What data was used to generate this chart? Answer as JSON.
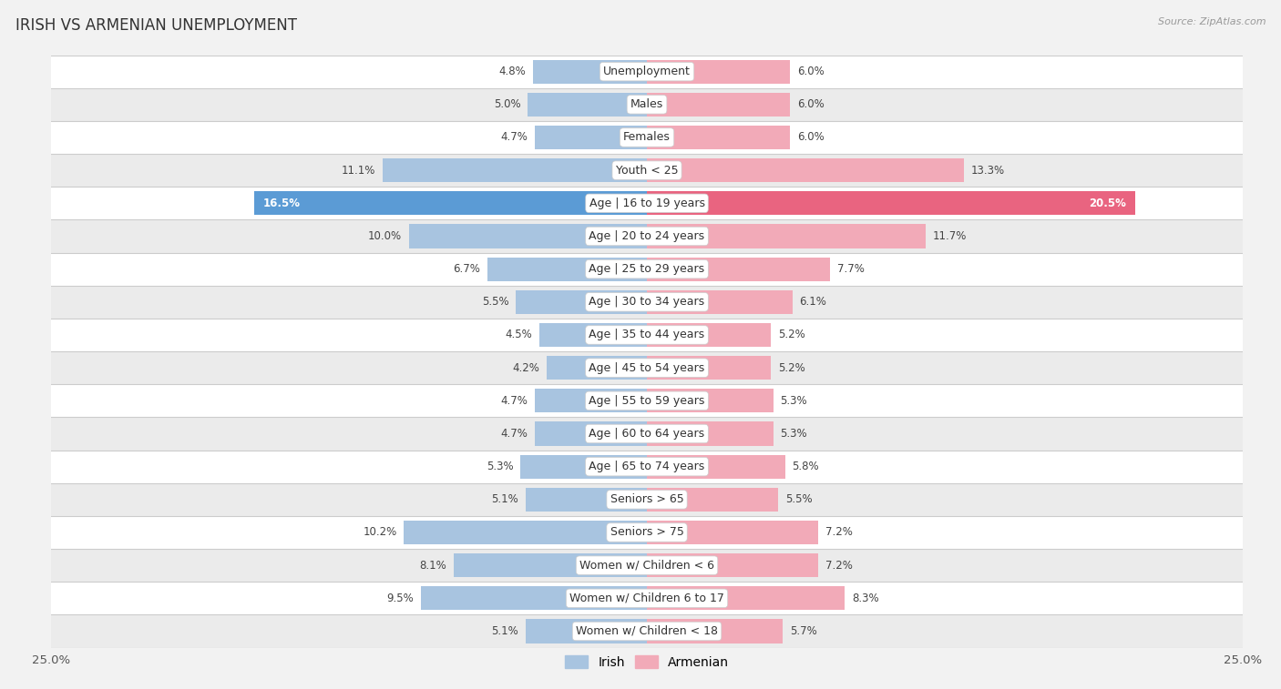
{
  "title": "IRISH VS ARMENIAN UNEMPLOYMENT",
  "source": "Source: ZipAtlas.com",
  "categories": [
    "Unemployment",
    "Males",
    "Females",
    "Youth < 25",
    "Age | 16 to 19 years",
    "Age | 20 to 24 years",
    "Age | 25 to 29 years",
    "Age | 30 to 34 years",
    "Age | 35 to 44 years",
    "Age | 45 to 54 years",
    "Age | 55 to 59 years",
    "Age | 60 to 64 years",
    "Age | 65 to 74 years",
    "Seniors > 65",
    "Seniors > 75",
    "Women w/ Children < 6",
    "Women w/ Children 6 to 17",
    "Women w/ Children < 18"
  ],
  "irish_values": [
    4.8,
    5.0,
    4.7,
    11.1,
    16.5,
    10.0,
    6.7,
    5.5,
    4.5,
    4.2,
    4.7,
    4.7,
    5.3,
    5.1,
    10.2,
    8.1,
    9.5,
    5.1
  ],
  "armenian_values": [
    6.0,
    6.0,
    6.0,
    13.3,
    20.5,
    11.7,
    7.7,
    6.1,
    5.2,
    5.2,
    5.3,
    5.3,
    5.8,
    5.5,
    7.2,
    7.2,
    8.3,
    5.7
  ],
  "irish_color": "#a8c4e0",
  "armenian_color": "#f2aab8",
  "irish_highlight_color": "#5b9bd5",
  "armenian_highlight_color": "#e96480",
  "highlight_row": 4,
  "axis_limit": 25.0,
  "background_color": "#f2f2f2",
  "row_bg_white": "#ffffff",
  "row_bg_gray": "#ebebeb",
  "bar_height": 0.72,
  "label_fontsize": 9.0,
  "value_fontsize": 8.5,
  "legend_irish": "Irish",
  "legend_armenian": "Armenian"
}
